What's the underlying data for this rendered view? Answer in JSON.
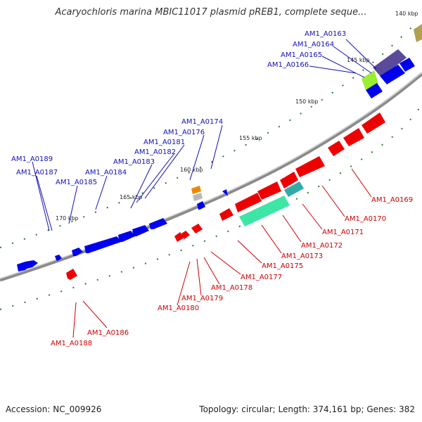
{
  "title": "Acaryochloris marina MBIC11017 plasmid pREB1, complete seque...",
  "accession": "Accession: NC_009926",
  "summary": "Topology: circular; Length: 374,161 bp; Genes: 382",
  "colors": {
    "forward": "#0000ee",
    "reverse": "#ee0000",
    "backbone": "#888888",
    "tick": "#2a7a2a",
    "cds_light": "#3ee6a6",
    "cds_orange": "#ee8800",
    "cds_olive": "#b0a050",
    "cds_lime": "#99ee33",
    "cds_purple": "#5a4a99",
    "cds_teal": "#33aaaa"
  },
  "kbp_labels": [
    {
      "label": "140 kbp"
    },
    {
      "label": "145 kbp"
    },
    {
      "label": "150 kbp"
    },
    {
      "label": "155 kbp"
    },
    {
      "label": "160 kbp"
    },
    {
      "label": "165 kbp"
    },
    {
      "label": "170 kbp"
    }
  ],
  "forward_genes": [
    {
      "name": "AM1_A0163"
    },
    {
      "name": "AM1_A0164"
    },
    {
      "name": "AM1_A0165"
    },
    {
      "name": "AM1_A0166"
    },
    {
      "name": "AM1_A0174"
    },
    {
      "name": "AM1_A0176"
    },
    {
      "name": "AM1_A0181"
    },
    {
      "name": "AM1_A0182"
    },
    {
      "name": "AM1_A0183"
    },
    {
      "name": "AM1_A0184"
    },
    {
      "name": "AM1_A0185"
    },
    {
      "name": "AM1_A0187"
    },
    {
      "name": "AM1_A0189"
    }
  ],
  "reverse_genes": [
    {
      "name": "AM1_A0169"
    },
    {
      "name": "AM1_A0170"
    },
    {
      "name": "AM1_A0171"
    },
    {
      "name": "AM1_A0172"
    },
    {
      "name": "AM1_A0173"
    },
    {
      "name": "AM1_A0175"
    },
    {
      "name": "AM1_A0177"
    },
    {
      "name": "AM1_A0178"
    },
    {
      "name": "AM1_A0179"
    },
    {
      "name": "AM1_A0180"
    },
    {
      "name": "AM1_A0186"
    },
    {
      "name": "AM1_A0188"
    }
  ]
}
